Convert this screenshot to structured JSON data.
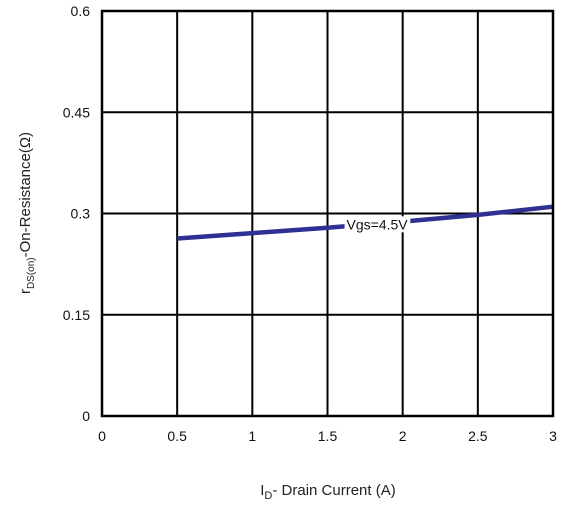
{
  "chart_data": {
    "type": "line",
    "title": "",
    "xlabel": {
      "main": "I",
      "sub": "D",
      "rest": "- Drain Current (A)"
    },
    "ylabel": {
      "main": "r",
      "sub": "DS(on)",
      "rest": "-On-Resistance(Ω)"
    },
    "xlim": [
      0,
      3
    ],
    "ylim": [
      0,
      0.6
    ],
    "x_ticks": [
      0,
      0.5,
      1,
      1.5,
      2,
      2.5,
      3
    ],
    "x_tick_labels": [
      "0",
      "0.5",
      "1",
      "1.5",
      "2",
      "2.5",
      "3"
    ],
    "y_ticks": [
      0,
      0.15,
      0.3,
      0.45,
      0.6
    ],
    "y_tick_labels": [
      "0",
      "0.15",
      "0.3",
      "0.45",
      "0.6"
    ],
    "grid": true,
    "series": [
      {
        "name": "Vgs=4.5V",
        "color": "#2e3192",
        "x": [
          0.5,
          1.0,
          1.5,
          2.0,
          2.5,
          3.0
        ],
        "y": [
          0.263,
          0.271,
          0.279,
          0.288,
          0.298,
          0.31
        ]
      }
    ]
  }
}
